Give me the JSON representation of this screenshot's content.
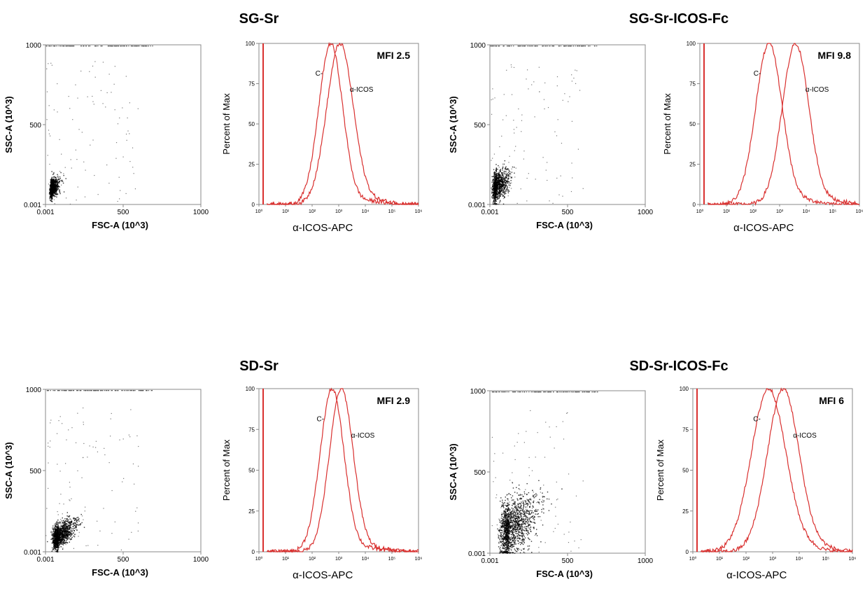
{
  "panels": [
    {
      "title": "SG-Sr",
      "scatter": {
        "xlabel": "FSC-A (10^3)",
        "ylabel": "SSC-A (10^3)",
        "xticks": [
          "0.001",
          "500",
          "1000"
        ],
        "yticks": [
          "0.001",
          "500",
          "1000"
        ],
        "xticks_values": [
          0,
          500,
          1000
        ],
        "yticks_values": [
          0,
          500,
          1000
        ],
        "xlim": [
          0,
          1000
        ],
        "ylim": [
          0,
          1000
        ],
        "cluster": {
          "center_x": 40,
          "center_y": 80,
          "spread": "tight"
        }
      },
      "histogram": {
        "xlabel": "α-ICOS-APC",
        "ylabel": "Percent of Max",
        "yticks": [
          "0",
          "25",
          "50",
          "75",
          "100"
        ],
        "xticks": [
          "10⁰",
          "10¹",
          "10²",
          "10³",
          "10⁴",
          "10⁵",
          "10⁶"
        ],
        "mfi_label": "MFI 2.5",
        "series": [
          {
            "name": "C-",
            "peak_log10": 2.7,
            "width": 0.45
          },
          {
            "name": "α-ICOS",
            "peak_log10": 3.05,
            "width": 0.5
          }
        ]
      }
    },
    {
      "title": "SG-Sr-ICOS-Fc",
      "scatter": {
        "xlabel": "FSC-A (10^3)",
        "ylabel": "SSC-A (10^3)",
        "xticks": [
          "0.001",
          "500",
          "1000"
        ],
        "yticks": [
          "0.001",
          "500",
          "1000"
        ],
        "xticks_values": [
          0,
          500,
          1000
        ],
        "yticks_values": [
          0,
          500,
          1000
        ],
        "xlim": [
          0,
          1000
        ],
        "ylim": [
          0,
          1000
        ],
        "cluster": {
          "center_x": 40,
          "center_y": 90,
          "spread": "medium"
        }
      },
      "histogram": {
        "xlabel": "α-ICOS-APC",
        "ylabel": "Percent of Max",
        "yticks": [
          "0",
          "25",
          "50",
          "75",
          "100"
        ],
        "xticks": [
          "10⁰",
          "10¹",
          "10²",
          "10³",
          "10⁴",
          "10⁵",
          "10⁶"
        ],
        "mfi_label": "MFI 9.8",
        "series": [
          {
            "name": "C-",
            "peak_log10": 2.6,
            "width": 0.5
          },
          {
            "name": "α-ICOS",
            "peak_log10": 3.6,
            "width": 0.5
          }
        ]
      }
    },
    {
      "title": "SD-Sr",
      "scatter": {
        "xlabel": "FSC-A (10^3)",
        "ylabel": "SSC-A (10^3)",
        "xticks": [
          "0.001",
          "500",
          "1000"
        ],
        "yticks": [
          "0.001",
          "500",
          "1000"
        ],
        "xticks_values": [
          0,
          500,
          1000
        ],
        "yticks_values": [
          0,
          500,
          1000
        ],
        "xlim": [
          0,
          1000
        ],
        "ylim": [
          0,
          1000
        ],
        "cluster": {
          "center_x": 80,
          "center_y": 50,
          "spread": "wide"
        }
      },
      "histogram": {
        "xlabel": "α-ICOS-APC",
        "ylabel": "Percent of Max",
        "yticks": [
          "0",
          "25",
          "50",
          "75",
          "100"
        ],
        "xticks": [
          "10⁰",
          "10¹",
          "10²",
          "10³",
          "10⁴",
          "10⁵",
          "10⁶"
        ],
        "mfi_label": "MFI 2.9",
        "series": [
          {
            "name": "C-",
            "peak_log10": 2.75,
            "width": 0.45
          },
          {
            "name": "α-ICOS",
            "peak_log10": 3.1,
            "width": 0.45
          }
        ]
      }
    },
    {
      "title": "SD-Sr-ICOS-Fc",
      "scatter": {
        "xlabel": "FSC-A (10^3)",
        "ylabel": "SSC-A (10^3)",
        "xticks": [
          "0.001",
          "500",
          "1000"
        ],
        "yticks": [
          "0.001",
          "500",
          "1000"
        ],
        "xticks_values": [
          0,
          500,
          1000
        ],
        "yticks_values": [
          0,
          500,
          1000
        ],
        "xlim": [
          0,
          1000
        ],
        "ylim": [
          0,
          1000
        ],
        "cluster": {
          "center_x": 120,
          "center_y": 80,
          "spread": "diffuse"
        }
      },
      "histogram": {
        "xlabel": "α-ICOS-APC",
        "ylabel": "Percent of Max",
        "yticks": [
          "0",
          "25",
          "50",
          "75",
          "100"
        ],
        "xticks": [
          "10⁰",
          "10¹",
          "10²",
          "10³",
          "10⁴",
          "10⁵",
          "10⁶"
        ],
        "mfi_label": "MFI 6",
        "series": [
          {
            "name": "C-",
            "peak_log10": 2.85,
            "width": 0.65
          },
          {
            "name": "α-ICOS",
            "peak_log10": 3.4,
            "width": 0.6
          }
        ]
      }
    }
  ],
  "colors": {
    "histogram_line": "#d9302f",
    "dots": "#000000",
    "axis": "#888888"
  }
}
